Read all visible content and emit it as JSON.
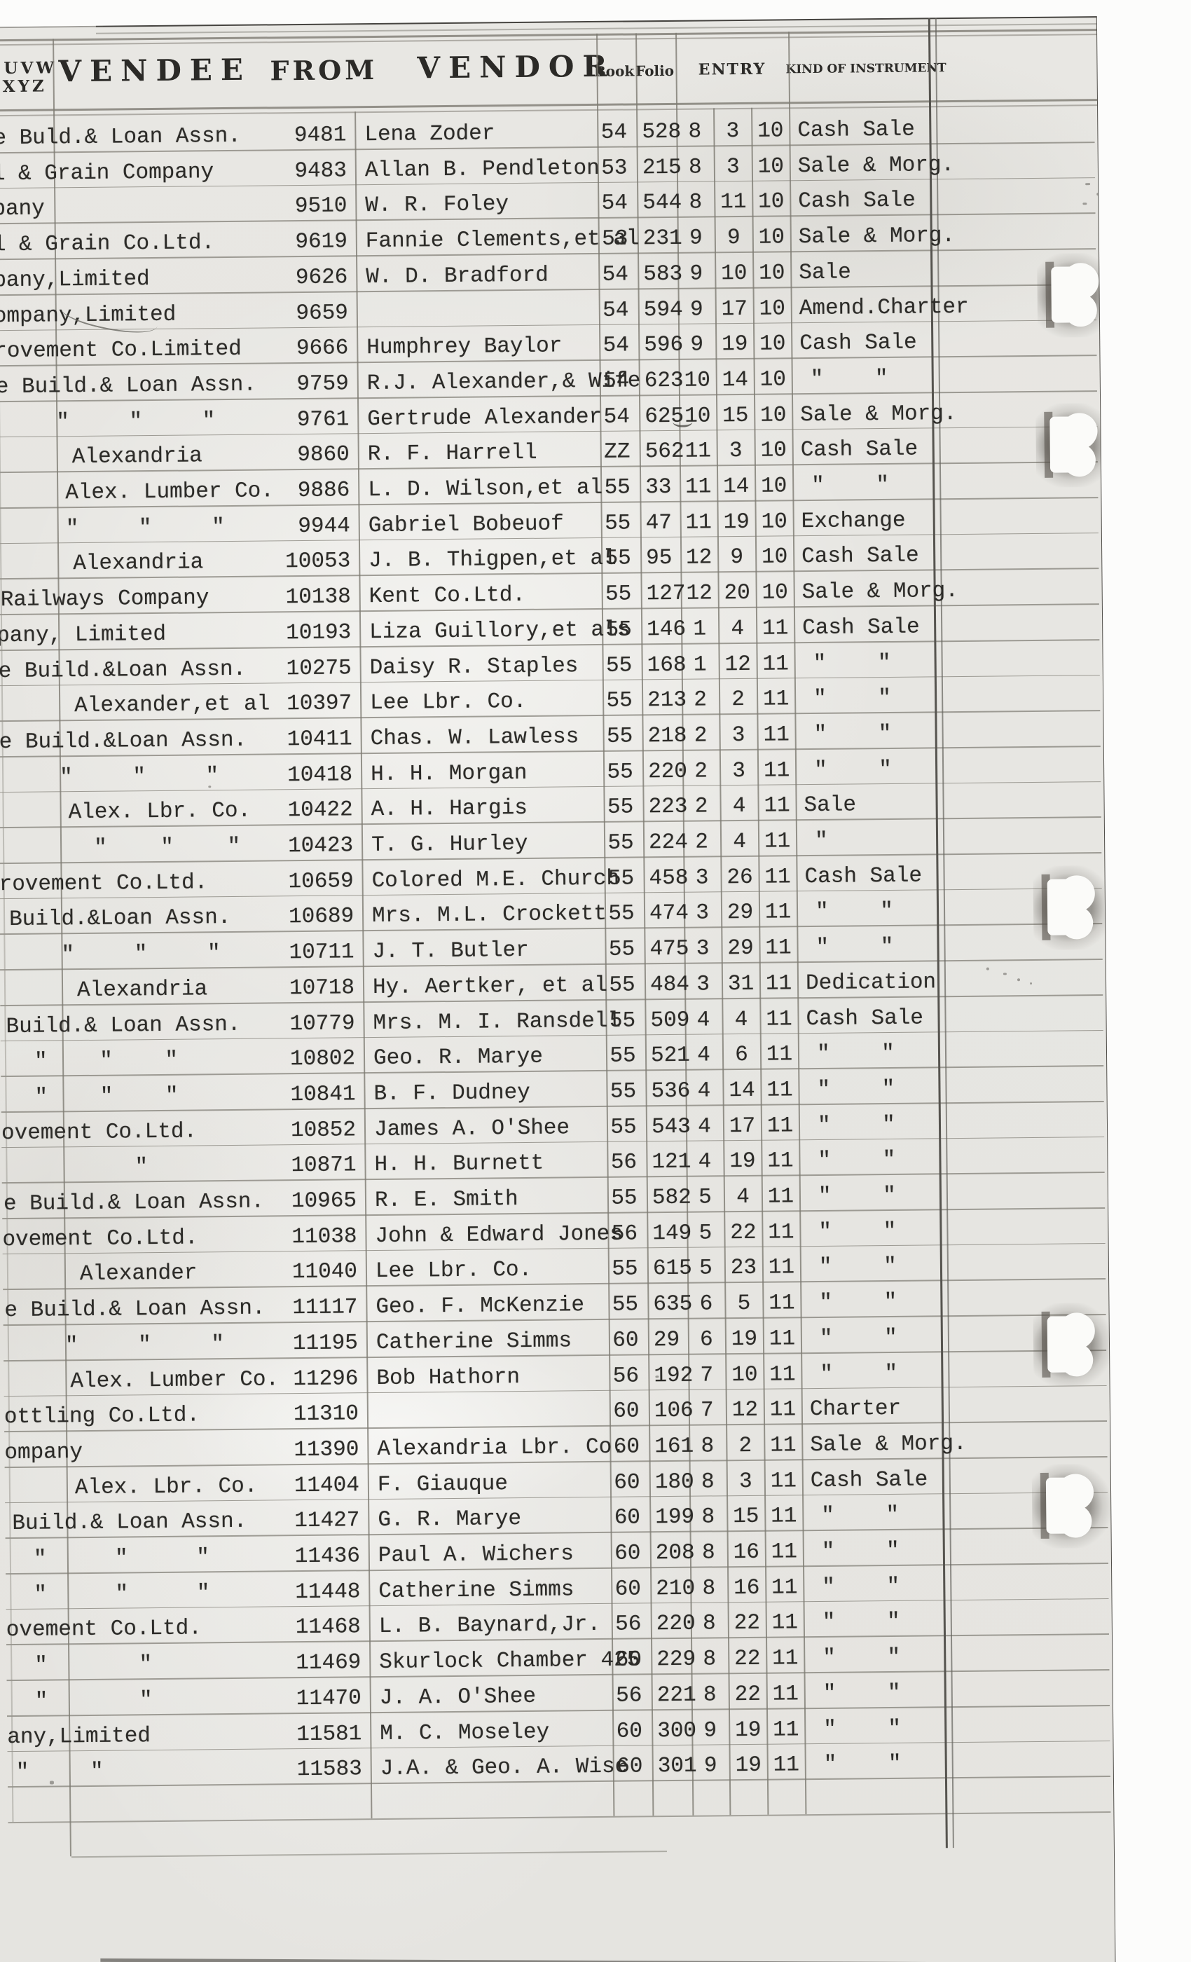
{
  "page": {
    "description": "Scanned typewritten conveyance index ledger page",
    "corner": {
      "line1": "UVW",
      "line2": "XYZ"
    }
  },
  "header": {
    "vendee": "VENDEE",
    "from": "FROM",
    "vendor": "VENDOR",
    "book": "Book",
    "folio": "Folio",
    "entry": "ENTRY",
    "kind": "KIND OF INSTRUMENT"
  },
  "rows": [
    {
      "vendee": "e Buld.& Loan Assn.",
      "vx": 2,
      "num": "9481",
      "vendor": "Lena Zoder",
      "book": "54",
      "folio": "528",
      "m": "8",
      "d": "3",
      "y": "10",
      "kind": "Cash Sale"
    },
    {
      "vendee": "l & Grain Company",
      "vx": 0,
      "num": "9483",
      "vendor": "Allan B. Pendleton",
      "book": "53",
      "folio": "215",
      "m": "8",
      "d": "3",
      "y": "10",
      "kind": "Sale & Morg."
    },
    {
      "vendee": "pany",
      "vx": 0,
      "num": "9510",
      "vendor": "W. R. Foley",
      "book": "54",
      "folio": "544",
      "m": "8",
      "d": "11",
      "y": "10",
      "kind": "Cash Sale"
    },
    {
      "vendee": "l & Grain Co.Ltd.",
      "vx": 0,
      "num": "9619",
      "vendor": "Fannie Clements,et al",
      "book": "53",
      "folio": "231",
      "m": "9",
      "d": "9",
      "y": "10",
      "kind": "Sale & Morg."
    },
    {
      "vendee": "pany,Limited",
      "vx": 0,
      "num": "9626",
      "vendor": "W. D. Bradford",
      "book": "54",
      "folio": "583",
      "m": "9",
      "d": "10",
      "y": "10",
      "kind": "Sale"
    },
    {
      "vendee": "ompany,Limited",
      "vx": 0,
      "num": "9659",
      "vendor": "",
      "book": "54",
      "folio": "594",
      "m": "9",
      "d": "17",
      "y": "10",
      "kind": "Amend.Charter"
    },
    {
      "vendee": "rovement Co.Limited",
      "vx": 0,
      "num": "9666",
      "vendor": "Humphrey Baylor",
      "book": "54",
      "folio": "596",
      "m": "9",
      "d": "19",
      "y": "10",
      "kind": "Cash Sale"
    },
    {
      "vendee": "e Build.& Loan Assn.",
      "vx": 2,
      "num": "9759",
      "vendor": "R.J. Alexander,& Wife",
      "book": "54",
      "folio": "623",
      "m": "10",
      "d": "14",
      "y": "10",
      "kind": "\" \"",
      "kd": 2
    },
    {
      "vendee": "\" \" \"",
      "vx": 88,
      "vws": 67,
      "num": "9761",
      "vendor": "Gertrude Alexander",
      "book": "54",
      "folio": "625",
      "m": "10",
      "d": "15",
      "y": "10",
      "kind": "Sale & Morg."
    },
    {
      "vendee": "Alexandria",
      "vx": 110,
      "num": "9860",
      "vendor": "R. F. Harrell",
      "book": "ZZ",
      "folio": "562",
      "m": "11",
      "d": "3",
      "y": "10",
      "kind": "Cash Sale"
    },
    {
      "vendee": "Alex. Lumber Co.",
      "vx": 100,
      "num": "9886",
      "vendor": "L. D. Wilson,et al",
      "book": "55",
      "folio": "33",
      "m": "11",
      "d": "14",
      "y": "10",
      "kind": "\" \"",
      "kd": 2
    },
    {
      "vendee": "\" \" \"",
      "vx": 100,
      "vws": 67,
      "num": "9944",
      "vendor": "Gabriel Bobeuof",
      "book": "55",
      "folio": "47",
      "m": "11",
      "d": "19",
      "y": "10",
      "kind": "Exchange"
    },
    {
      "vendee": "Alexandria",
      "vx": 110,
      "num": "10053",
      "vendor": "J. B. Thigpen,et al",
      "book": "55",
      "folio": "95",
      "m": "12",
      "d": "9",
      "y": "10",
      "kind": "Cash Sale"
    },
    {
      "vendee": "Railways Company",
      "vx": 6,
      "num": "10138",
      "vendor": "Kent Co.Ltd.",
      "book": "55",
      "folio": "127",
      "m": "12",
      "d": "20",
      "y": "10",
      "kind": "Sale & Morg."
    },
    {
      "vendee": "pany, Limited",
      "vx": 0,
      "num": "10193",
      "vendor": "Liza Guillory,et als",
      "book": "55",
      "folio": "146",
      "m": "1",
      "d": "4",
      "y": "11",
      "kind": "Cash Sale"
    },
    {
      "vendee": "e Build.&Loan Assn.",
      "vx": 2,
      "num": "10275",
      "vendor": "Daisy R. Staples",
      "book": "55",
      "folio": "168",
      "m": "1",
      "d": "12",
      "y": "11",
      "kind": "\" \"",
      "kd": 2
    },
    {
      "vendee": "Alexander,et al",
      "vx": 110,
      "num": "10397",
      "vendor": "Lee Lbr. Co.",
      "book": "55",
      "folio": "213",
      "m": "2",
      "d": "2",
      "y": "11",
      "kind": "\" \"",
      "kd": 2
    },
    {
      "vendee": "e Build.&Loan Assn.",
      "vx": 2,
      "num": "10411",
      "vendor": "Chas. W. Lawless",
      "book": "55",
      "folio": "218",
      "m": "2",
      "d": "3",
      "y": "11",
      "kind": "\" \"",
      "kd": 2
    },
    {
      "vendee": "\" \" \"",
      "vx": 88,
      "vws": 67,
      "num": "10418",
      "vendor": "H. H. Morgan",
      "book": "55",
      "folio": "220",
      "m": "2",
      "d": "3",
      "y": "11",
      "kind": "\" \"",
      "kd": 2
    },
    {
      "vendee": "Alex. Lbr. Co.",
      "vx": 100,
      "num": "10422",
      "vendor": "A. H. Hargis",
      "book": "55",
      "folio": "223",
      "m": "2",
      "d": "4",
      "y": "11",
      "kind": "Sale"
    },
    {
      "vendee": "\" \" \"",
      "vx": 136,
      "vws": 58,
      "num": "10423",
      "vendor": "T. G. Hurley",
      "book": "55",
      "folio": "224",
      "m": "2",
      "d": "4",
      "y": "11",
      "kind": "\"",
      "kd": 1
    },
    {
      "vendee": "rovement Co.Ltd.",
      "vx": 0,
      "num": "10659",
      "vendor": "Colored M.E. Church",
      "book": "55",
      "folio": "458",
      "m": "3",
      "d": "26",
      "y": "11",
      "kind": "Cash Sale"
    },
    {
      "vendee": "Build.&Loan Assn.",
      "vx": 14,
      "num": "10689",
      "vendor": "Mrs. M.L. Crockett",
      "book": "55",
      "folio": "474",
      "m": "3",
      "d": "29",
      "y": "11",
      "kind": "\" \"",
      "kd": 2
    },
    {
      "vendee": "\" \" \"",
      "vx": 88,
      "vws": 67,
      "num": "10711",
      "vendor": "J. T. Butler",
      "book": "55",
      "folio": "475",
      "m": "3",
      "d": "29",
      "y": "11",
      "kind": "\" \"",
      "kd": 2
    },
    {
      "vendee": "Alexandria",
      "vx": 110,
      "num": "10718",
      "vendor": "Hy. Aertker, et al",
      "book": "55",
      "folio": "484",
      "m": "3",
      "d": "31",
      "y": "11",
      "kind": "Dedication"
    },
    {
      "vendee": "Build.& Loan Assn.",
      "vx": 8,
      "num": "10779",
      "vendor": "Mrs. M. I. Ransdell",
      "book": "55",
      "folio": "509",
      "m": "4",
      "d": "4",
      "y": "11",
      "kind": "Cash Sale"
    },
    {
      "vendee": "\" \" \"",
      "vx": 48,
      "vws": 56,
      "num": "10802",
      "vendor": "Geo. R. Marye",
      "book": "55",
      "folio": "521",
      "m": "4",
      "d": "6",
      "y": "11",
      "kind": "\" \"",
      "kd": 2
    },
    {
      "vendee": "\" \" \"",
      "vx": 48,
      "vws": 56,
      "num": "10841",
      "vendor": "B. F. Dudney",
      "book": "55",
      "folio": "536",
      "m": "4",
      "d": "14",
      "y": "11",
      "kind": "\" \"",
      "kd": 2
    },
    {
      "vendee": "ovement Co.Ltd.",
      "vx": 0,
      "num": "10852",
      "vendor": "James A. O'Shee",
      "book": "55",
      "folio": "543",
      "m": "4",
      "d": "17",
      "y": "11",
      "kind": "\" \"",
      "kd": 2
    },
    {
      "vendee": "\"",
      "vx": 190,
      "num": "10871",
      "vendor": "H. H. Burnett",
      "book": "56",
      "folio": "121",
      "m": "4",
      "d": "19",
      "y": "11",
      "kind": "\" \"",
      "kd": 2
    },
    {
      "vendee": "e Build.& Loan Assn.",
      "vx": 2,
      "num": "10965",
      "vendor": "R. E. Smith",
      "book": "55",
      "folio": "582",
      "m": "5",
      "d": "4",
      "y": "11",
      "kind": "\" \"",
      "kd": 2
    },
    {
      "vendee": "ovement Co.Ltd.",
      "vx": 0,
      "num": "11038",
      "vendor": "John & Edward Jones",
      "book": "56",
      "folio": "149",
      "m": "5",
      "d": "22",
      "y": "11",
      "kind": "\" \"",
      "kd": 2
    },
    {
      "vendee": "Alexander",
      "vx": 110,
      "num": "11040",
      "vendor": "Lee Lbr. Co.",
      "book": "55",
      "folio": "615",
      "m": "5",
      "d": "23",
      "y": "11",
      "kind": "\" \"",
      "kd": 2
    },
    {
      "vendee": "e Build.& Loan Assn.",
      "vx": 2,
      "num": "11117",
      "vendor": "Geo. F. McKenzie",
      "book": "55",
      "folio": "635",
      "m": "6",
      "d": "5",
      "y": "11",
      "kind": "\" \"",
      "kd": 2
    },
    {
      "vendee": "\" \" \"",
      "vx": 88,
      "vws": 67,
      "num": "11195",
      "vendor": "Catherine Simms",
      "book": "60",
      "folio": "29",
      "m": "6",
      "d": "19",
      "y": "11",
      "kind": "\" \"",
      "kd": 2
    },
    {
      "vendee": "Alex. Lumber Co.",
      "vx": 95,
      "num": "11296",
      "vendor": "Bob Hathorn",
      "book": "56",
      "folio": "192",
      "m": "7",
      "d": "10",
      "y": "11",
      "kind": "\" \"",
      "kd": 2
    },
    {
      "vendee": "ottling Co.Ltd.",
      "vx": 0,
      "num": "11310",
      "vendor": "",
      "book": "60",
      "folio": "106",
      "m": "7",
      "d": "12",
      "y": "11",
      "kind": "Charter"
    },
    {
      "vendee": "ompany",
      "vx": 0,
      "num": "11390",
      "vendor": "Alexandria Lbr. Co.",
      "book": "60",
      "folio": "161",
      "m": "8",
      "d": "2",
      "y": "11",
      "kind": "Sale & Morg."
    },
    {
      "vendee": "Alex. Lbr. Co.",
      "vx": 100,
      "num": "11404",
      "vendor": "F. Giauque",
      "book": "60",
      "folio": "180",
      "m": "8",
      "d": "3",
      "y": "11",
      "kind": "Cash Sale"
    },
    {
      "vendee": "Build.& Loan Assn.",
      "vx": 10,
      "num": "11427",
      "vendor": "G. R. Marye",
      "book": "60",
      "folio": "199",
      "m": "8",
      "d": "15",
      "y": "11",
      "kind": "\" \"",
      "kd": 2
    },
    {
      "vendee": "\" \" \"",
      "vx": 40,
      "vws": 79,
      "num": "11436",
      "vendor": "Paul A. Wichers",
      "book": "60",
      "folio": "208",
      "m": "8",
      "d": "16",
      "y": "11",
      "kind": "\" \"",
      "kd": 2
    },
    {
      "vendee": "\" \" \"",
      "vx": 40,
      "vws": 79,
      "num": "11448",
      "vendor": "Catherine Simms",
      "book": "60",
      "folio": "210",
      "m": "8",
      "d": "16",
      "y": "11",
      "kind": "\" \"",
      "kd": 2
    },
    {
      "vendee": "ovement Co.Ltd.",
      "vx": 0,
      "num": "11468",
      "vendor": "L. B. Baynard,Jr.",
      "book": "56",
      "folio": "220",
      "m": "8",
      "d": "22",
      "y": "11",
      "kind": "\" \"",
      "kd": 2
    },
    {
      "vendee": "\" \"",
      "vx": 40,
      "vws": 112,
      "num": "11469",
      "vendor": "Skurlock Chamber 425",
      "book": "60",
      "folio": "229",
      "m": "8",
      "d": "22",
      "y": "11",
      "kind": "\" \"",
      "kd": 2
    },
    {
      "vendee": "\" \"",
      "vx": 40,
      "vws": 112,
      "num": "11470",
      "vendor": "J. A. O'Shee",
      "book": "56",
      "folio": "221",
      "m": "8",
      "d": "22",
      "y": "11",
      "kind": "\" \"",
      "kd": 2
    },
    {
      "vendee": "any,Limited",
      "vx": 0,
      "num": "11581",
      "vendor": "M. C. Moseley",
      "book": "60",
      "folio": "300",
      "m": "9",
      "d": "19",
      "y": "11",
      "kind": "\" \"",
      "kd": 2
    },
    {
      "vendee": "\" \"",
      "vx": 12,
      "vws": 69,
      "num": "11583",
      "vendor": "J.A. & Geo. A. Wise",
      "book": "60",
      "folio": "301",
      "m": "9",
      "d": "19",
      "y": "11",
      "kind": "\" \"",
      "kd": 2
    }
  ]
}
